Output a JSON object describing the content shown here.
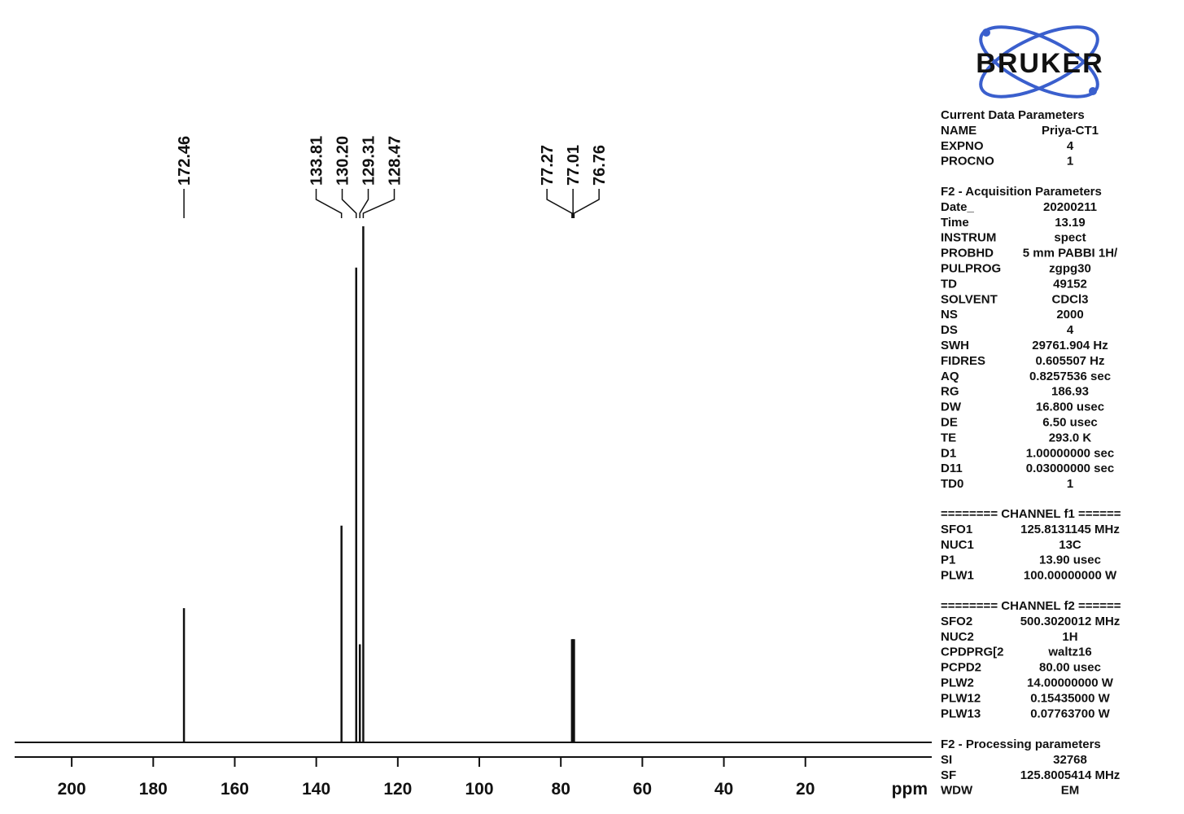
{
  "chart_data": {
    "type": "spectrum",
    "x": [
      172.46,
      133.81,
      130.2,
      129.31,
      128.47,
      77.27,
      77.01,
      76.76
    ],
    "peak_labels": [
      "172.46",
      "133.81",
      "130.20",
      "129.31",
      "128.47",
      "77.27",
      "77.01",
      "76.76"
    ],
    "values": [
      26,
      42,
      92,
      19,
      100,
      20,
      20,
      20
    ],
    "color": "#111111",
    "xlim": [
      214,
      -10
    ],
    "xticks": [
      200,
      180,
      160,
      140,
      120,
      100,
      80,
      60,
      40,
      20
    ],
    "x_label": "ppm"
  },
  "panel": {
    "logo": "BRUKER",
    "sections": [
      {
        "title": "Current Data Parameters",
        "rows": [
          [
            "NAME",
            "Priya-CT1"
          ],
          [
            "EXPNO",
            "4"
          ],
          [
            "PROCNO",
            "1"
          ]
        ]
      },
      {
        "title": "F2 - Acquisition Parameters",
        "rows": [
          [
            "Date_",
            "20200211"
          ],
          [
            "Time",
            "13.19"
          ],
          [
            "INSTRUM",
            "spect"
          ],
          [
            "PROBHD",
            "5 mm PABBI 1H/"
          ],
          [
            "PULPROG",
            "zgpg30"
          ],
          [
            "TD",
            "49152"
          ],
          [
            "SOLVENT",
            "CDCl3"
          ],
          [
            "NS",
            "2000"
          ],
          [
            "DS",
            "4"
          ],
          [
            "SWH",
            "29761.904 Hz"
          ],
          [
            "FIDRES",
            "0.605507 Hz"
          ],
          [
            "AQ",
            "0.8257536 sec"
          ],
          [
            "RG",
            "186.93"
          ],
          [
            "DW",
            "16.800 usec"
          ],
          [
            "DE",
            "6.50 usec"
          ],
          [
            "TE",
            "293.0 K"
          ],
          [
            "D1",
            "1.00000000 sec"
          ],
          [
            "D11",
            "0.03000000 sec"
          ],
          [
            "TD0",
            "1"
          ]
        ]
      },
      {
        "title": "======== CHANNEL f1 ======",
        "rows": [
          [
            "SFO1",
            "125.8131145 MHz"
          ],
          [
            "NUC1",
            "13C"
          ],
          [
            "P1",
            "13.90 usec"
          ],
          [
            "PLW1",
            "100.00000000 W"
          ]
        ]
      },
      {
        "title": "======== CHANNEL f2 ======",
        "rows": [
          [
            "SFO2",
            "500.3020012 MHz"
          ],
          [
            "NUC2",
            "1H"
          ],
          [
            "CPDPRG[2",
            "waltz16"
          ],
          [
            "PCPD2",
            "80.00 usec"
          ],
          [
            "PLW2",
            "14.00000000 W"
          ],
          [
            "PLW12",
            "0.15435000 W"
          ],
          [
            "PLW13",
            "0.07763700 W"
          ]
        ]
      },
      {
        "title": "F2 - Processing parameters",
        "rows": [
          [
            "SI",
            "32768"
          ],
          [
            "SF",
            "125.8005414 MHz"
          ],
          [
            "WDW",
            "EM"
          ]
        ]
      }
    ]
  }
}
